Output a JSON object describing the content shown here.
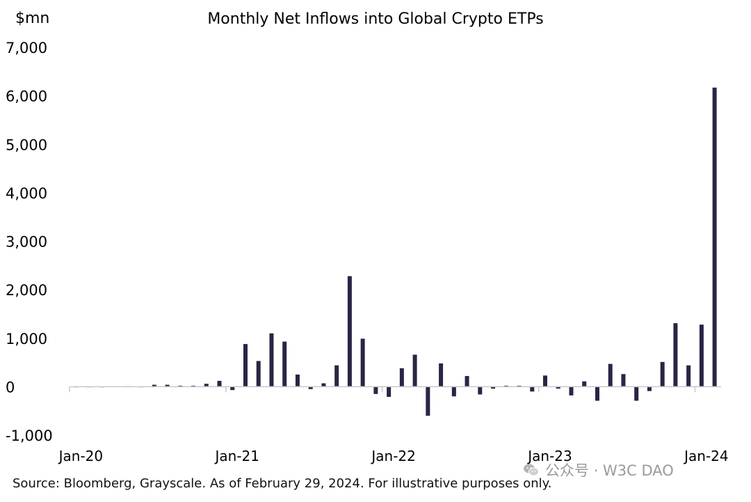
{
  "chart_data": {
    "type": "bar",
    "title": "Monthly Net Inflows into Global Crypto ETPs",
    "unit_label": "$mn",
    "ylim": [
      -1000,
      7000
    ],
    "yticks": [
      {
        "value": 7000,
        "label": "7,000"
      },
      {
        "value": 6000,
        "label": "6,000"
      },
      {
        "value": 5000,
        "label": "5,000"
      },
      {
        "value": 4000,
        "label": "4,000"
      },
      {
        "value": 3000,
        "label": "3,000"
      },
      {
        "value": 2000,
        "label": "2,000"
      },
      {
        "value": 1000,
        "label": "1,000"
      },
      {
        "value": 0,
        "label": "0"
      },
      {
        "value": -1000,
        "label": "-1,000"
      }
    ],
    "xticks": [
      {
        "index": 0,
        "label": "Jan-20"
      },
      {
        "index": 12,
        "label": "Jan-21"
      },
      {
        "index": 24,
        "label": "Jan-22"
      },
      {
        "index": 36,
        "label": "Jan-23"
      },
      {
        "index": 48,
        "label": "Jan-24"
      }
    ],
    "bar_color": "#2b2445",
    "series": [
      {
        "values": [
          0,
          0,
          0,
          5,
          10,
          -5,
          40,
          40,
          20,
          20,
          60,
          120,
          -70,
          880,
          530,
          1100,
          930,
          250,
          -50,
          70,
          440,
          2280,
          990,
          -150,
          -210,
          380,
          660,
          -600,
          480,
          -200,
          220,
          -160,
          -40,
          20,
          20,
          -100,
          230,
          -40,
          -180,
          110,
          -290,
          470,
          260,
          -290,
          -90,
          510,
          1310,
          440,
          1280,
          6170
        ]
      }
    ],
    "grid": false,
    "legend": "none"
  },
  "footer": {
    "source": "Source: Bloomberg, Grayscale. As of February 29, 2024. For illustrative purposes only."
  },
  "watermark": {
    "text": "公众号 · W3C DAO",
    "icon": "wechat-icon"
  }
}
